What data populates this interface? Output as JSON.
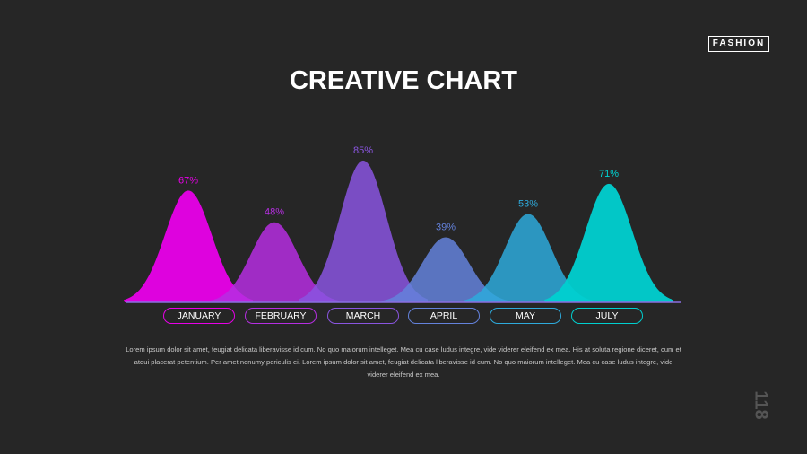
{
  "brand": "FASHION",
  "title": "CREATIVE CHART",
  "page_number": "118",
  "description": "Lorem ipsum dolor sit amet, feugiat delicata liberavisse id cum. No quo maiorum intelleget. Mea cu case ludus integre, vide viderer eleifend ex mea. His at soluta regione diceret, cum et atqui placerat petentium. Per amet nonumy periculis ei. Lorem ipsum dolor sit amet, feugiat delicata liberavisse id cum. No quo maiorum intelleget. Mea cu case ludus integre, vide viderer eleifend ex mea.",
  "chart_data": {
    "type": "area",
    "title": "CREATIVE CHART",
    "categories": [
      "JANUARY",
      "FEBRUARY",
      "MARCH",
      "APRIL",
      "MAY",
      "JULY"
    ],
    "values": [
      67,
      48,
      85,
      39,
      53,
      71
    ],
    "value_labels": [
      "67%",
      "48%",
      "85%",
      "39%",
      "53%",
      "71%"
    ],
    "colors": [
      "#e800e8",
      "#b62ee2",
      "#8a55e0",
      "#6482dc",
      "#2eaadc",
      "#00d0d0"
    ],
    "ylim": [
      0,
      100
    ],
    "grid": false
  }
}
